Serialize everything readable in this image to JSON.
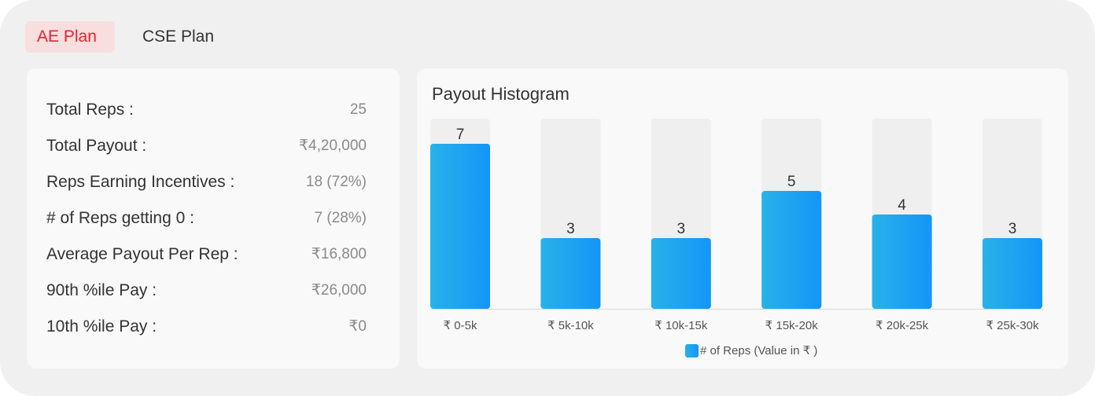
{
  "tabs": [
    {
      "label": "AE Plan",
      "active": true
    },
    {
      "label": "CSE Plan",
      "active": false
    }
  ],
  "stats": [
    {
      "label": "Total Reps :",
      "value": "25"
    },
    {
      "label": "Total Payout :",
      "value": "₹4,20,000"
    },
    {
      "label": "Reps Earning Incentives :",
      "value": "18 (72%)"
    },
    {
      "label": "# of Reps getting 0 :",
      "value": "7 (28%)"
    },
    {
      "label": "Average Payout Per Rep :",
      "value": "₹16,800"
    },
    {
      "label": "90th %ile Pay :",
      "value": "₹26,000"
    },
    {
      "label": "10th %ile Pay :",
      "value": "₹0"
    }
  ],
  "chart_data": {
    "type": "bar",
    "title": "Payout Histogram",
    "categories": [
      "₹ 0-5k",
      "₹ 5k-10k",
      "₹ 10k-15k",
      "₹ 15k-20k",
      "₹ 20k-25k",
      "₹ 25k-30k"
    ],
    "series": [
      {
        "name": "# of Reps (Value in ₹ )",
        "values": [
          7,
          3,
          3,
          5,
          4,
          3
        ]
      }
    ],
    "ylim": [
      0,
      8
    ],
    "grid": false,
    "legend": "bottom",
    "colors": {
      "bar_start": "#28b1e8",
      "bar_end": "#1396f8",
      "track": "#efefef",
      "axis": "#d8d8d8"
    }
  }
}
